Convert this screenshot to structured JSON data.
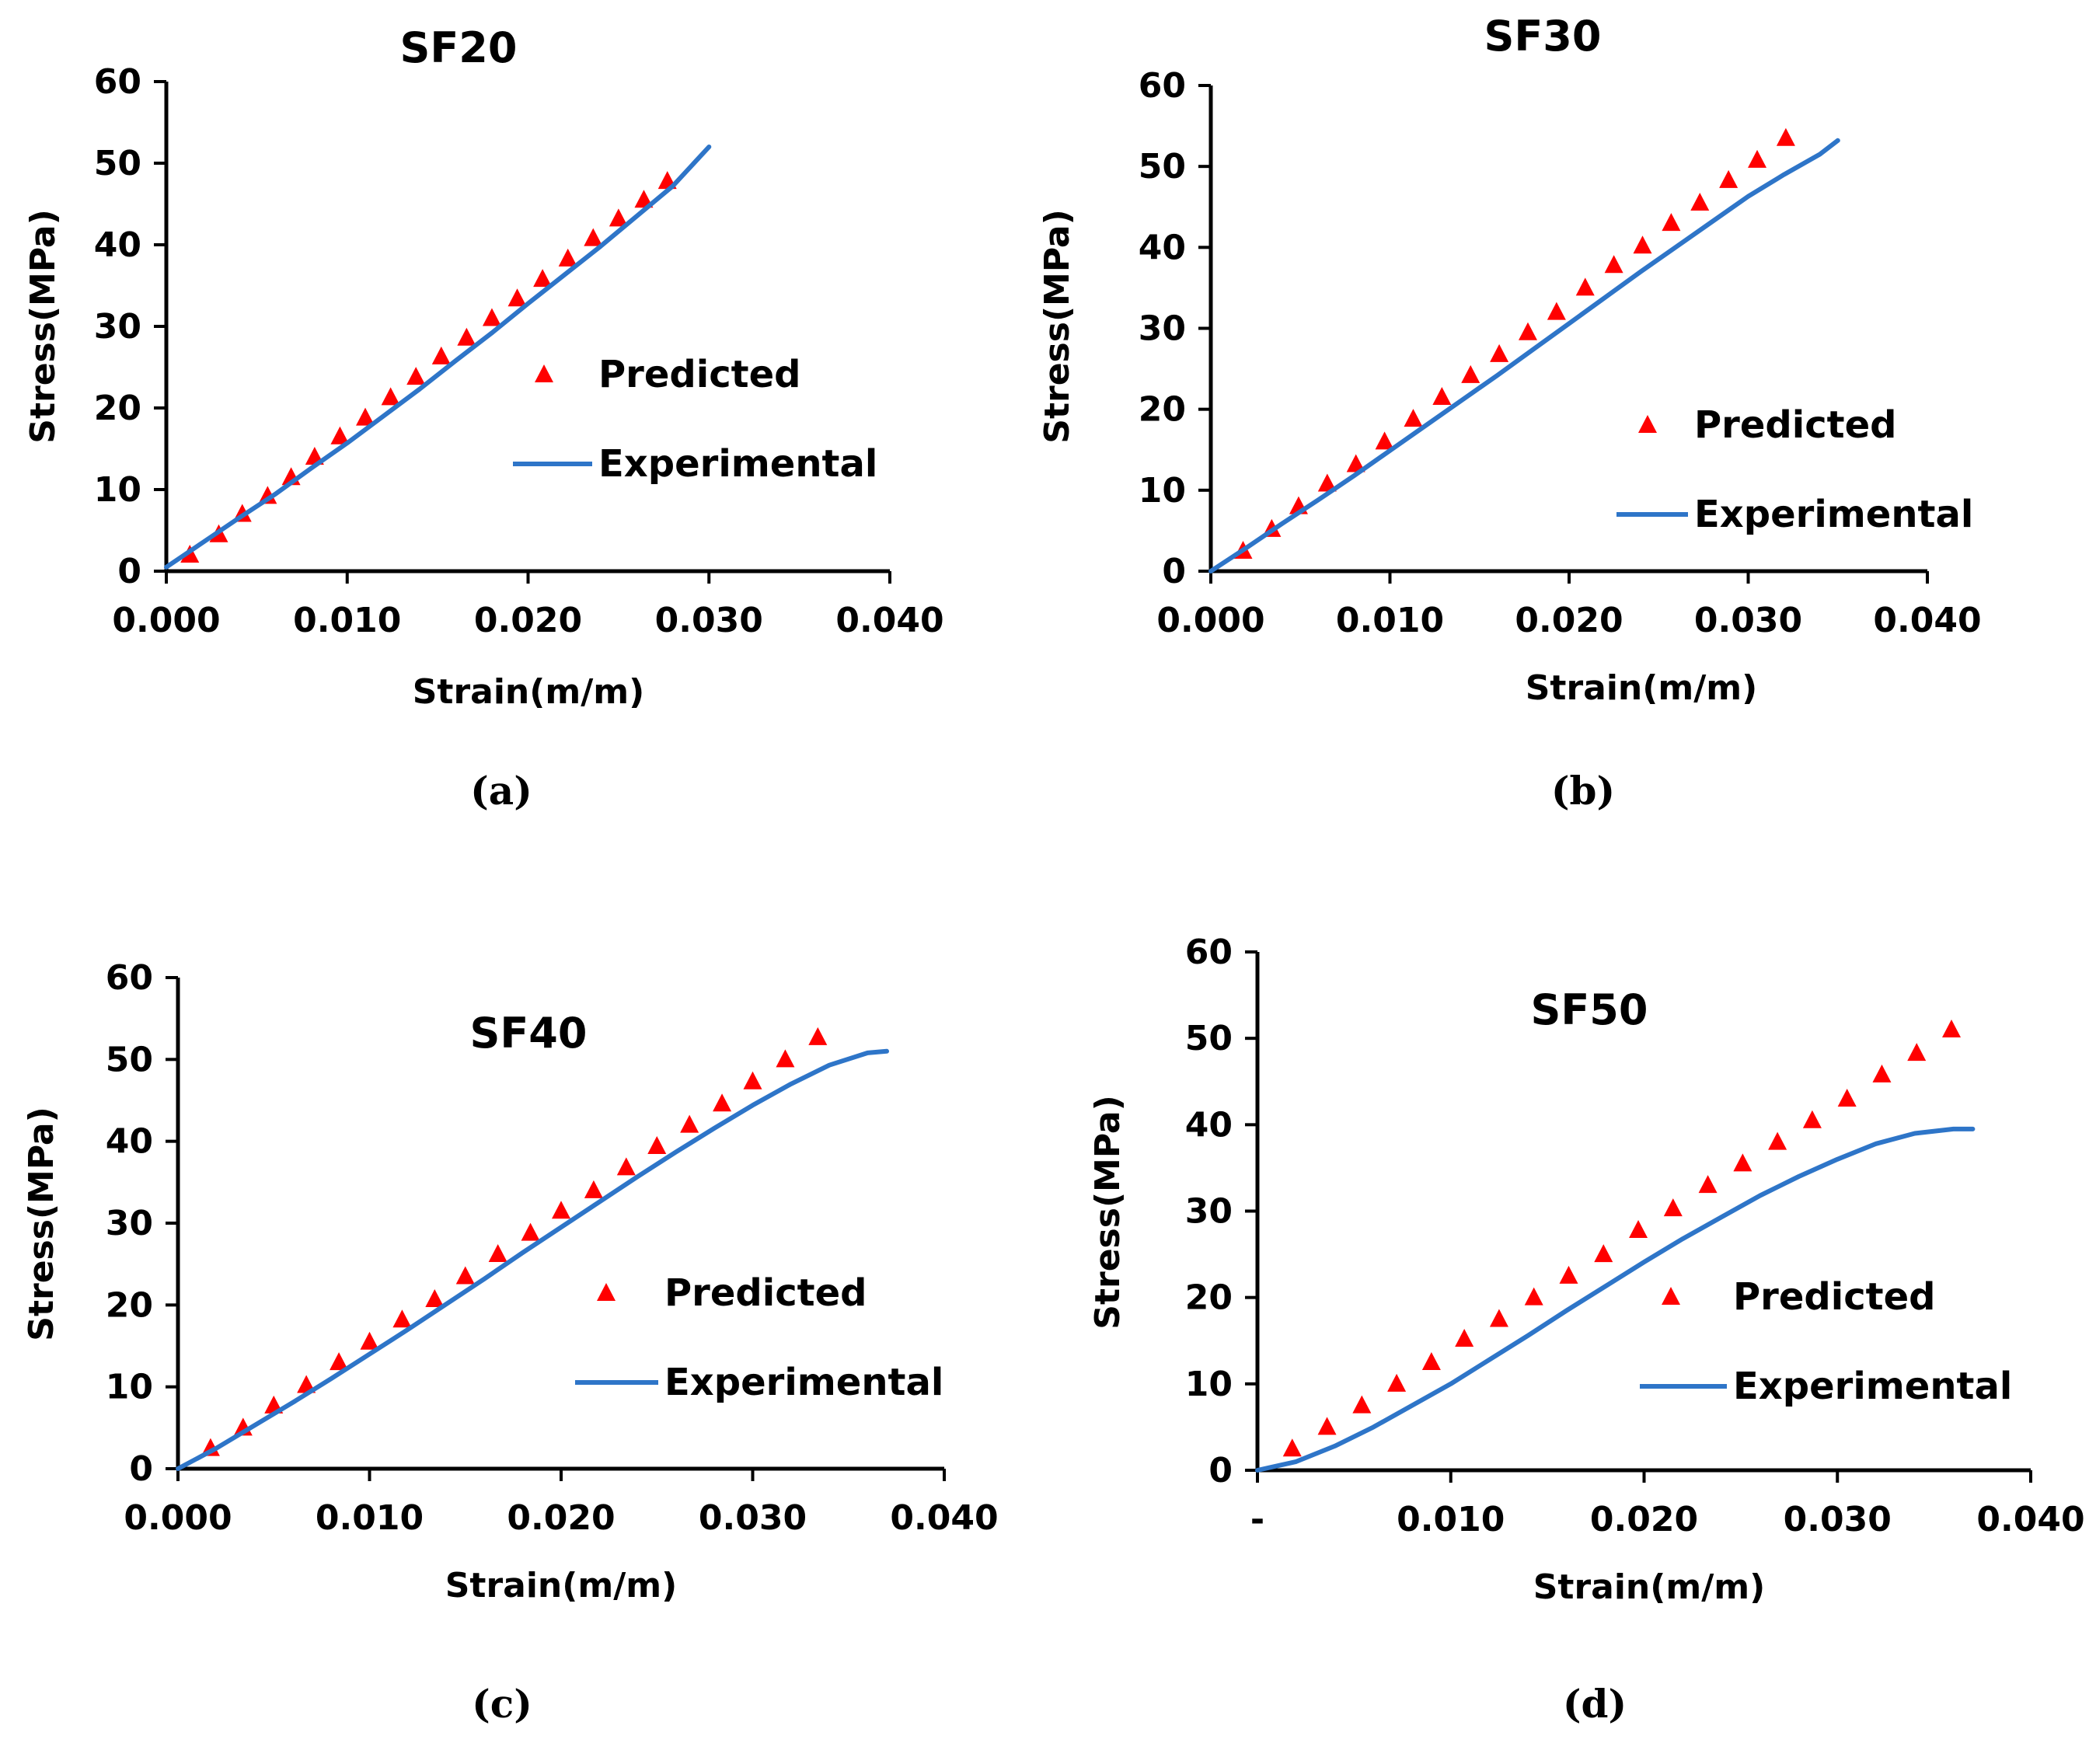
{
  "chart_data": [
    {
      "type": "scatter",
      "title": "SF20",
      "caption": "(a)",
      "xlabel": "Strain(m/m)",
      "ylabel": "Stress(MPa)",
      "xlim": [
        0,
        0.04
      ],
      "ylim": [
        0,
        60
      ],
      "xticks": [
        "0.000",
        "0.010",
        "0.020",
        "0.030",
        "0.040"
      ],
      "yticks": [
        "0",
        "10",
        "20",
        "30",
        "40",
        "50",
        "60"
      ],
      "legend": {
        "position": "center-right",
        "entries": [
          "Predicted",
          "Experimental"
        ]
      },
      "series": [
        {
          "name": "Predicted",
          "style": "markers",
          "marker": "triangle",
          "color": "#ff0000",
          "x": [
            0.0013,
            0.0029,
            0.0042,
            0.0056,
            0.0069,
            0.0082,
            0.0096,
            0.011,
            0.0124,
            0.0138,
            0.0152,
            0.0166,
            0.018,
            0.0194,
            0.0208,
            0.0222,
            0.0236,
            0.025,
            0.0264,
            0.0277
          ],
          "y": [
            2.0,
            4.5,
            7.0,
            9.2,
            11.5,
            14.0,
            16.5,
            18.8,
            21.3,
            23.8,
            26.3,
            28.6,
            31.0,
            33.4,
            35.8,
            38.3,
            40.8,
            43.2,
            45.5,
            47.8
          ]
        },
        {
          "name": "Experimental",
          "style": "line",
          "color": "#2e75c8",
          "x": [
            0.0,
            0.002,
            0.004,
            0.006,
            0.008,
            0.01,
            0.012,
            0.014,
            0.016,
            0.018,
            0.02,
            0.022,
            0.024,
            0.026,
            0.028,
            0.03
          ],
          "y": [
            0.5,
            3.5,
            6.5,
            9.4,
            12.6,
            15.7,
            19.0,
            22.3,
            25.8,
            29.2,
            32.8,
            36.3,
            39.8,
            43.5,
            47.2,
            52.0
          ]
        }
      ]
    },
    {
      "type": "scatter",
      "title": "SF30",
      "caption": "(b)",
      "xlabel": "Strain(m/m)",
      "ylabel": "Stress(MPa)",
      "xlim": [
        0,
        0.04
      ],
      "ylim": [
        0,
        60
      ],
      "xticks": [
        "0.000",
        "0.010",
        "0.020",
        "0.030",
        "0.040"
      ],
      "yticks": [
        "0",
        "10",
        "20",
        "30",
        "40",
        "50",
        "60"
      ],
      "legend": {
        "position": "center-right",
        "entries": [
          "Predicted",
          "Experimental"
        ]
      },
      "series": [
        {
          "name": "Predicted",
          "style": "markers",
          "marker": "triangle",
          "color": "#ff0000",
          "x": [
            0.0018,
            0.0034,
            0.0049,
            0.0065,
            0.0081,
            0.0097,
            0.0113,
            0.0129,
            0.0145,
            0.0161,
            0.0177,
            0.0193,
            0.0209,
            0.0225,
            0.0241,
            0.0257,
            0.0273,
            0.0289,
            0.0305,
            0.0321
          ],
          "y": [
            2.5,
            5.2,
            8.0,
            10.8,
            13.2,
            16.0,
            18.8,
            21.5,
            24.2,
            26.8,
            29.5,
            32.0,
            35.0,
            37.8,
            40.2,
            43.0,
            45.5,
            48.3,
            50.8,
            53.5
          ]
        },
        {
          "name": "Experimental",
          "style": "line",
          "color": "#2e75c8",
          "x": [
            0.0,
            0.002,
            0.004,
            0.006,
            0.008,
            0.01,
            0.012,
            0.014,
            0.016,
            0.018,
            0.02,
            0.022,
            0.024,
            0.026,
            0.028,
            0.03,
            0.032,
            0.034,
            0.035
          ],
          "y": [
            0.0,
            2.9,
            5.9,
            8.8,
            11.8,
            14.9,
            18.0,
            21.1,
            24.2,
            27.4,
            30.6,
            33.8,
            37.0,
            40.1,
            43.2,
            46.3,
            49.0,
            51.5,
            53.2
          ]
        }
      ]
    },
    {
      "type": "scatter",
      "title": "SF40",
      "caption": "(c)",
      "xlabel": "Strain(m/m)",
      "ylabel": "Stress(MPa)",
      "xlim": [
        0,
        0.04
      ],
      "ylim": [
        0,
        60
      ],
      "xticks": [
        "0.000",
        "0.010",
        "0.020",
        "0.030",
        "0.040"
      ],
      "yticks": [
        "0",
        "10",
        "20",
        "30",
        "40",
        "50",
        "60"
      ],
      "legend": {
        "position": "center-right",
        "entries": [
          "Predicted",
          "Experimental"
        ]
      },
      "series": [
        {
          "name": "Predicted",
          "style": "markers",
          "marker": "triangle",
          "color": "#ff0000",
          "x": [
            0.0017,
            0.0034,
            0.005,
            0.0067,
            0.0084,
            0.01,
            0.0117,
            0.0134,
            0.015,
            0.0167,
            0.0184,
            0.02,
            0.0217,
            0.0234,
            0.025,
            0.0267,
            0.0284,
            0.03,
            0.0317,
            0.0334
          ],
          "y": [
            2.5,
            5.0,
            7.7,
            10.2,
            13.0,
            15.5,
            18.2,
            20.7,
            23.5,
            26.2,
            28.8,
            31.5,
            34.0,
            36.8,
            39.4,
            42.0,
            44.6,
            47.3,
            50.0,
            52.7
          ]
        },
        {
          "name": "Experimental",
          "style": "line",
          "color": "#2e75c8",
          "x": [
            0.0,
            0.002,
            0.004,
            0.006,
            0.008,
            0.01,
            0.012,
            0.014,
            0.016,
            0.018,
            0.02,
            0.022,
            0.024,
            0.026,
            0.028,
            0.03,
            0.032,
            0.034,
            0.036,
            0.037
          ],
          "y": [
            0.0,
            2.5,
            5.3,
            8.1,
            11.0,
            14.0,
            17.0,
            20.1,
            23.2,
            26.4,
            29.5,
            32.6,
            35.7,
            38.7,
            41.6,
            44.4,
            47.0,
            49.3,
            50.8,
            51.0
          ]
        }
      ]
    },
    {
      "type": "scatter",
      "title": "SF50",
      "caption": "(d)",
      "xlabel": "Strain(m/m)",
      "ylabel": "Stress(MPa)",
      "xlim": [
        0,
        0.04
      ],
      "ylim": [
        0,
        60
      ],
      "xticks": [
        "-",
        "0.010",
        "0.020",
        "0.030",
        "0.040"
      ],
      "yticks": [
        "0",
        "10",
        "20",
        "30",
        "40",
        "50",
        "60"
      ],
      "legend": {
        "position": "center-right",
        "entries": [
          "Predicted",
          "Experimental"
        ]
      },
      "series": [
        {
          "name": "Predicted",
          "style": "markers",
          "marker": "triangle",
          "color": "#ff0000",
          "x": [
            0.0018,
            0.0036,
            0.0054,
            0.0072,
            0.009,
            0.0107,
            0.0125,
            0.0143,
            0.0161,
            0.0179,
            0.0197,
            0.0215,
            0.0233,
            0.0251,
            0.0269,
            0.0287,
            0.0305,
            0.0323,
            0.0341,
            0.0359
          ],
          "y": [
            2.5,
            5.0,
            7.5,
            10.0,
            12.5,
            15.2,
            17.5,
            20.0,
            22.5,
            25.0,
            27.8,
            30.3,
            33.0,
            35.5,
            38.0,
            40.5,
            43.0,
            45.8,
            48.3,
            51.0
          ]
        },
        {
          "name": "Experimental",
          "style": "line",
          "color": "#2e75c8",
          "x": [
            0.0,
            0.002,
            0.004,
            0.006,
            0.008,
            0.01,
            0.012,
            0.014,
            0.016,
            0.018,
            0.02,
            0.022,
            0.024,
            0.026,
            0.028,
            0.03,
            0.032,
            0.034,
            0.036,
            0.037
          ],
          "y": [
            0.0,
            1.0,
            2.8,
            5.0,
            7.5,
            10.0,
            12.8,
            15.6,
            18.5,
            21.3,
            24.1,
            26.8,
            29.3,
            31.8,
            34.0,
            36.0,
            37.8,
            39.0,
            39.5,
            39.5
          ]
        }
      ]
    }
  ],
  "colors": {
    "predicted": "#ff0000",
    "experimental": "#2e75c8",
    "axis": "#000000"
  }
}
